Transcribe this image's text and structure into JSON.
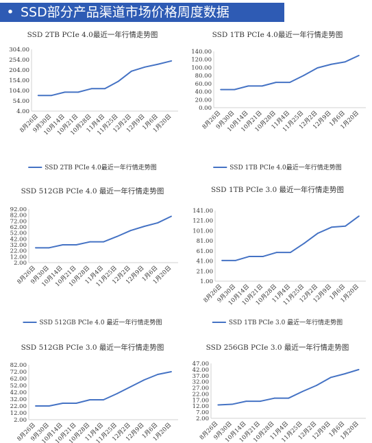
{
  "header": {
    "bullet": "•",
    "title": "SSD部分产品渠道市场价格周度数据"
  },
  "chart_data": [
    {
      "type": "line",
      "title": "SSD 2TB PCIe 4.0最近一年行情走势图",
      "categories": [
        "8月26日",
        "9月30日",
        "10月14日",
        "10月21日",
        "10月28日",
        "11月4日",
        "11月25日",
        "12月2日",
        "12月9日",
        "1月6日",
        "1月20日"
      ],
      "series": [
        {
          "name": "SSD 2TB PCIe 4.0最近一年行情走势图",
          "values": [
            80,
            80,
            96,
            96,
            113,
            113,
            148,
            198,
            218,
            232,
            248
          ]
        }
      ],
      "yticks": [
        "304.00",
        "254.00",
        "204.00",
        "154.00",
        "104.00",
        "54.00",
        "4.00"
      ],
      "ylim": [
        4,
        304
      ],
      "grid": false,
      "legend": "bottom",
      "color": "#4472c4"
    },
    {
      "type": "line",
      "title": "SSD 1TB PCIe 4.0最近一年行情走势图",
      "categories": [
        "8月26日",
        "9月30日",
        "10月14日",
        "10月21日",
        "10月28日",
        "11月4日",
        "11月25日",
        "12月2日",
        "12月9日",
        "1月6日",
        "1月20日"
      ],
      "series": [
        {
          "name": "SSD 1TB PCIe 4.0最近一年行情走势图",
          "values": [
            45,
            45,
            54,
            54,
            63,
            63,
            80,
            99,
            108,
            114,
            130
          ]
        }
      ],
      "yticks": [
        "140.00",
        "120.00",
        "100.00",
        "80.00",
        "60.00",
        "40.00",
        "20.00",
        "0.00"
      ],
      "ylim": [
        0,
        140
      ],
      "grid": false,
      "legend": "bottom",
      "color": "#4472c4"
    },
    {
      "type": "line",
      "title": "SSD 512GB PCIe 4.0 最近一年行情走势图",
      "categories": [
        "8月26日",
        "9月30日",
        "10月14日",
        "10月21日",
        "10月28日",
        "11月4日",
        "11月25日",
        "12月2日",
        "12月9日",
        "1月6日",
        "1月20日"
      ],
      "series": [
        {
          "name": "SSD 512GB PCIe 4.0 最近一年行情走势图",
          "values": [
            27,
            27,
            32,
            32,
            37,
            37,
            46,
            56,
            63,
            69,
            80
          ]
        }
      ],
      "yticks": [
        "92.00",
        "82.00",
        "72.00",
        "62.00",
        "52.00",
        "42.00",
        "32.00",
        "22.00",
        "12.00",
        "2.00"
      ],
      "ylim": [
        2,
        92
      ],
      "grid": false,
      "legend": "bottom",
      "color": "#4472c4"
    },
    {
      "type": "line",
      "title": "SSD 1TB PCIe 3.0 最近一年行情走势图",
      "categories": [
        "8月26日",
        "9月30日",
        "10月14日",
        "10月21日",
        "10月28日",
        "11月4日",
        "11月25日",
        "12月2日",
        "12月9日",
        "1月6日",
        "1月20日"
      ],
      "series": [
        {
          "name": "SSD 1TB PCIe 3.0 最近一年行情走势图",
          "values": [
            42,
            42,
            50,
            50,
            58,
            58,
            76,
            96,
            108,
            110,
            130
          ]
        }
      ],
      "yticks": [
        "141.00",
        "121.00",
        "101.00",
        "81.00",
        "61.00",
        "41.00",
        "21.00",
        "1.00"
      ],
      "ylim": [
        1,
        141
      ],
      "grid": false,
      "legend": "bottom",
      "color": "#4472c4"
    },
    {
      "type": "line",
      "title": "SSD 512GB PCIe 3.0 最近一年行情走势图",
      "categories": [
        "8月26日",
        "9月30日",
        "10月14日",
        "10月21日",
        "10月28日",
        "11月4日",
        "11月25日",
        "12月2日",
        "12月9日",
        "1月6日",
        "1月20日"
      ],
      "series": [
        {
          "name": "SSD 512GB PCIe 3.0 最近一年行情走势图",
          "values": [
            22,
            22,
            26,
            26,
            31,
            31,
            40,
            50,
            60,
            68,
            72
          ]
        }
      ],
      "yticks": [
        "82.00",
        "72.00",
        "62.00",
        "52.00",
        "42.00",
        "32.00",
        "22.00",
        "12.00",
        "2.00"
      ],
      "ylim": [
        2,
        82
      ],
      "grid": false,
      "legend": "none",
      "color": "#4472c4"
    },
    {
      "type": "line",
      "title": "SSD 256GB PCIe 3.0 最近一年行情走势图",
      "categories": [
        "8月26日",
        "9月30日",
        "10月14日",
        "10月21日",
        "10月28日",
        "11月4日",
        "11月25日",
        "12月2日",
        "12月9日",
        "1月6日",
        "1月20日"
      ],
      "series": [
        {
          "name": "SSD 256GB PCIe 3.0 最近一年行情走势图",
          "values": [
            13,
            13.5,
            16,
            16,
            18.5,
            18.5,
            24,
            29,
            35.5,
            38.5,
            42
          ]
        }
      ],
      "yticks": [
        "47.00",
        "42.00",
        "37.00",
        "32.00",
        "27.00",
        "22.00",
        "17.00",
        "12.00",
        "7.00",
        "2.00"
      ],
      "ylim": [
        2,
        47
      ],
      "grid": false,
      "legend": "none",
      "color": "#4472c4"
    }
  ]
}
